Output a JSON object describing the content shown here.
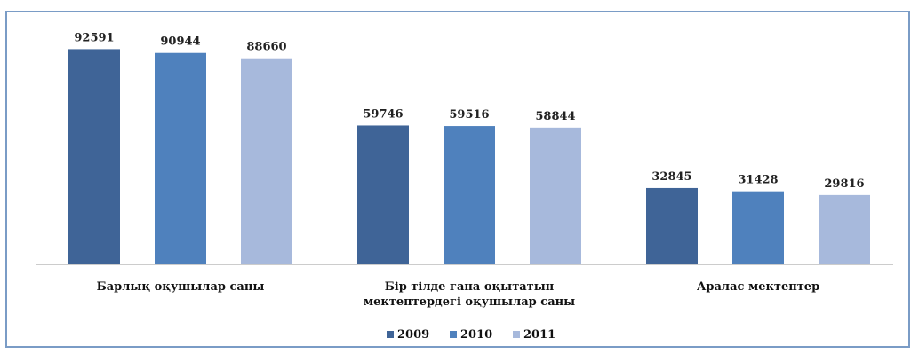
{
  "chart_data": {
    "type": "bar",
    "categories": [
      [
        "Барлық оқушылар саны"
      ],
      [
        "Бір тілде ғана оқытатын",
        "мектептердегі оқушылар саны"
      ],
      [
        "Аралас мектептер"
      ]
    ],
    "series": [
      {
        "name": "2009",
        "color": "#3f6497",
        "values": [
          92591,
          59746,
          32845
        ]
      },
      {
        "name": "2010",
        "color": "#4f81bd",
        "values": [
          90944,
          59516,
          31428
        ]
      },
      {
        "name": "2011",
        "color": "#a7b9dc",
        "values": [
          88660,
          58844,
          29816
        ]
      }
    ],
    "ylim": [
      0,
      100000
    ],
    "grid": false,
    "legend_position": "bottom-center"
  }
}
